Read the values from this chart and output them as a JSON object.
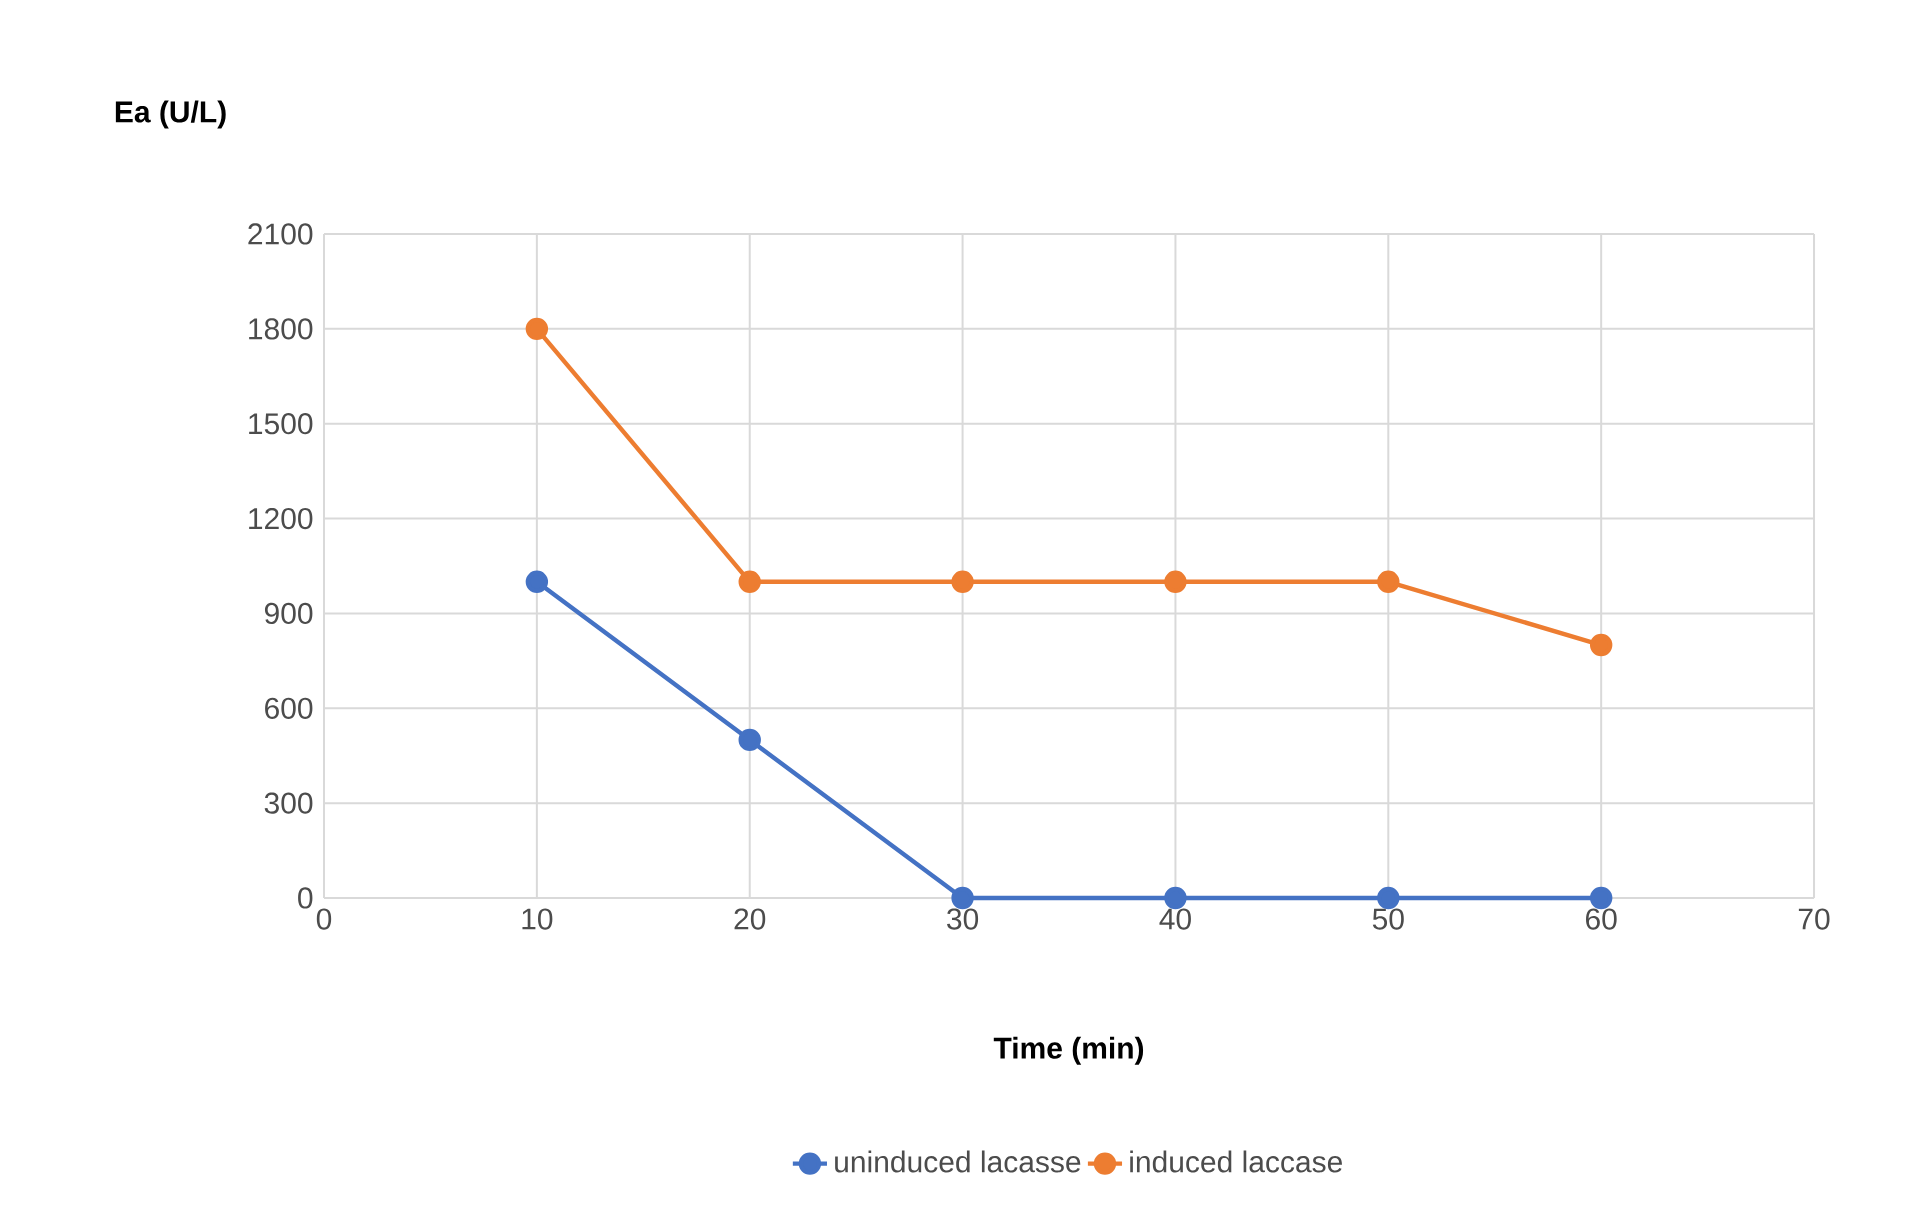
{
  "chart_data": {
    "type": "line",
    "xlabel": "Time (min)",
    "ylabel": "Ea (U/L)",
    "x": [
      10,
      20,
      30,
      40,
      50,
      60
    ],
    "series": [
      {
        "name": "uninduced lacasse",
        "color": "#4472c4",
        "values": [
          1000,
          500,
          0,
          0,
          0,
          0
        ]
      },
      {
        "name": "induced laccase",
        "color": "#ed7d31",
        "values": [
          1800,
          1000,
          1000,
          1000,
          1000,
          800
        ]
      }
    ],
    "xlim": [
      0,
      70
    ],
    "xticks": [
      0,
      10,
      20,
      30,
      40,
      50,
      60,
      70
    ],
    "ylim": [
      0,
      2100
    ],
    "yticks": [
      0,
      300,
      600,
      900,
      1200,
      1500,
      1800,
      2100
    ],
    "grid": true,
    "legend": "bottom",
    "marker": "circle",
    "line_style": "solid"
  }
}
